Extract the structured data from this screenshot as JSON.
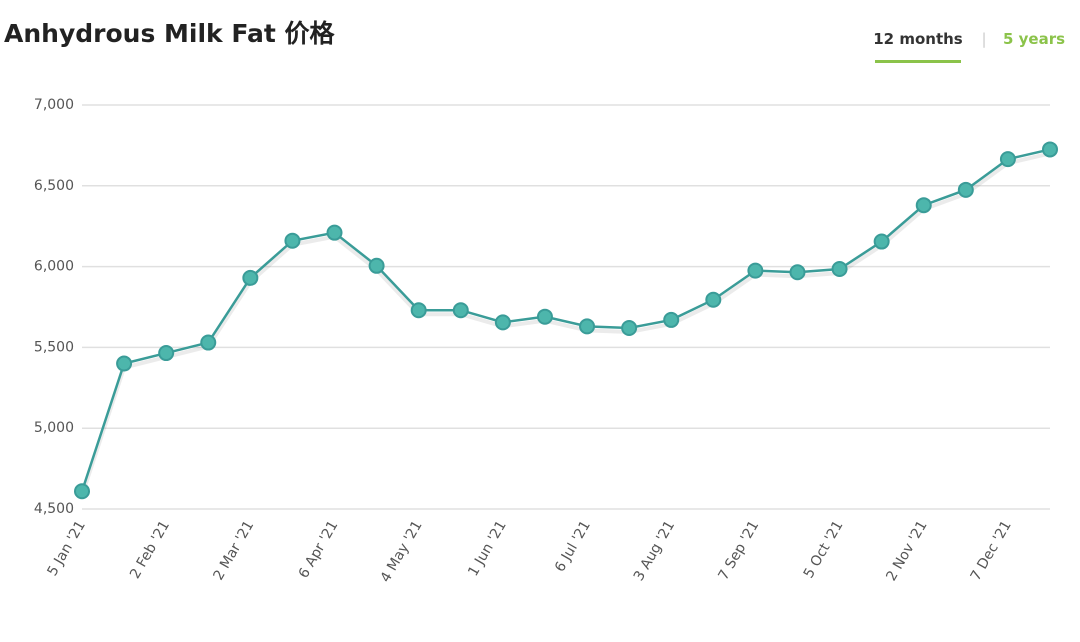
{
  "chart_data": {
    "type": "line",
    "title": "Anhydrous Milk Fat 价格",
    "tabs": [
      "12 months",
      "5 years"
    ],
    "categories": [
      "5 Jan '21",
      null,
      "2 Feb '21",
      null,
      "2 Mar '21",
      null,
      "6 Apr '21",
      null,
      "4 May '21",
      null,
      "1 Jun '21",
      null,
      "6 Jul '21",
      null,
      "3 Aug '21",
      null,
      "7 Sep '21",
      null,
      "5 Oct '21",
      null,
      "2 Nov '21",
      null,
      "7 Dec '21",
      null
    ],
    "series": [
      {
        "name": "Anhydrous Milk Fat",
        "color": "#3a9c98",
        "values": [
          4610,
          5400,
          5465,
          5530,
          5930,
          6160,
          6210,
          6005,
          5730,
          5730,
          5655,
          5690,
          5630,
          5620,
          5670,
          5795,
          5975,
          5965,
          5985,
          6155,
          6380,
          6475,
          6665,
          6725
        ]
      }
    ],
    "ylim": [
      4500,
      7000
    ],
    "yticks": [
      {
        "value": 4500,
        "label": "4,500"
      },
      {
        "value": 5000,
        "label": "5,000"
      },
      {
        "value": 5500,
        "label": "5,500"
      },
      {
        "value": 6000,
        "label": "6,000"
      },
      {
        "value": 6500,
        "label": "6,500"
      },
      {
        "value": 7000,
        "label": "7,000"
      }
    ],
    "grid": true
  }
}
